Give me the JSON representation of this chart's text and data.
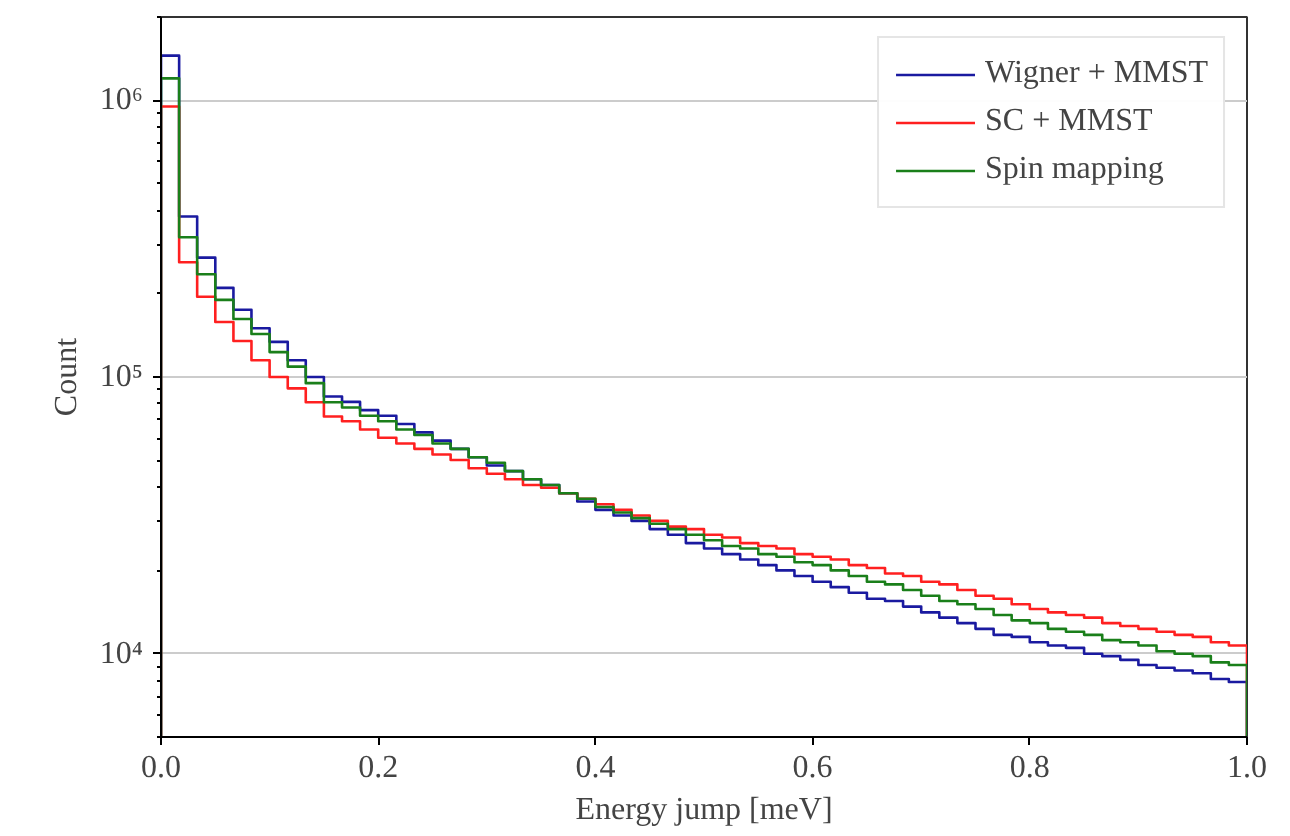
{
  "chart_data": {
    "type": "histogram",
    "xlabel": "Energy jump [meV]",
    "ylabel": "Count",
    "bins": [
      0,
      0.0167,
      0.0333,
      0.05,
      0.0667,
      0.0833,
      0.1,
      0.1167,
      0.1333,
      0.15,
      0.1667,
      0.1833,
      0.2,
      0.2167,
      0.2333,
      0.25,
      0.2667,
      0.2833,
      0.3,
      0.3167,
      0.3333,
      0.35,
      0.3667,
      0.3833,
      0.4,
      0.4167,
      0.4333,
      0.45,
      0.4667,
      0.4833,
      0.5,
      0.5167,
      0.5333,
      0.55,
      0.5667,
      0.5833,
      0.6,
      0.6167,
      0.6333,
      0.65,
      0.6667,
      0.6833,
      0.7,
      0.7167,
      0.7333,
      0.75,
      0.7667,
      0.7833,
      0.8,
      0.8167,
      0.8333,
      0.85,
      0.8667,
      0.8833,
      0.9,
      0.9167,
      0.9333,
      0.95,
      0.9667,
      0.9833,
      1
    ],
    "series": [
      {
        "name": "Wigner + MMST",
        "color": "#1a1aa0",
        "values": [
          1450000,
          380000,
          270000,
          210000,
          175000,
          150000,
          134000,
          115000,
          100000,
          85000,
          81300,
          75900,
          72400,
          67600,
          63100,
          58900,
          55000,
          51300,
          47900,
          45700,
          42700,
          40700,
          38000,
          35500,
          33100,
          31600,
          30200,
          28200,
          26900,
          25100,
          24000,
          22900,
          21900,
          20900,
          20000,
          19100,
          18200,
          17400,
          16600,
          15800,
          15500,
          14800,
          14100,
          13500,
          12900,
          12300,
          11700,
          11500,
          11000,
          10700,
          10500,
          10000,
          9800,
          9500,
          9100,
          8900,
          8700,
          8500,
          8100,
          7900
        ]
      },
      {
        "name": "SC + MMST",
        "color": "#ff2020",
        "values": [
          950000,
          260000,
          195000,
          158000,
          135000,
          115000,
          100000,
          91000,
          81000,
          72000,
          69200,
          64600,
          60300,
          57500,
          55000,
          52500,
          50100,
          46800,
          44700,
          42700,
          40700,
          39800,
          38000,
          36300,
          34700,
          33100,
          31600,
          30200,
          28800,
          28200,
          26900,
          26300,
          25100,
          24500,
          24000,
          22900,
          22400,
          21900,
          20900,
          20400,
          19500,
          19100,
          18200,
          17800,
          17000,
          16200,
          15800,
          15100,
          14500,
          14100,
          13800,
          13500,
          12900,
          12600,
          12300,
          12000,
          11700,
          11500,
          11000,
          10700
        ]
      },
      {
        "name": "Spin mapping",
        "color": "#1a7f1a",
        "values": [
          1200000,
          320000,
          235000,
          190000,
          162000,
          143000,
          123000,
          109000,
          95000,
          81000,
          77600,
          72400,
          69200,
          64600,
          61700,
          57500,
          55000,
          51300,
          49000,
          45700,
          42700,
          40700,
          38000,
          36300,
          33900,
          32400,
          30900,
          29500,
          28200,
          26900,
          25700,
          24500,
          24000,
          22900,
          22400,
          21400,
          20900,
          20000,
          19100,
          18200,
          17800,
          17000,
          16200,
          15500,
          15100,
          14500,
          13800,
          13200,
          12900,
          12300,
          12000,
          11700,
          11200,
          11000,
          10700,
          10200,
          10000,
          9800,
          9300,
          9100
        ]
      }
    ],
    "xlim": [
      0,
      1.0
    ],
    "xticks": [
      {
        "value": 0,
        "label": "0.0"
      },
      0.2,
      0.4,
      0.6,
      0.8,
      {
        "value": 1.0,
        "label": "1.0"
      }
    ],
    "ylim": [
      5000,
      2000000
    ],
    "log": "y",
    "yticks": [
      {
        "value": 10000,
        "label": "10⁴"
      },
      {
        "value": 100000,
        "label": "10⁵"
      },
      {
        "value": 1000000,
        "label": "10⁶"
      }
    ],
    "grid": "y",
    "legend": "top right"
  }
}
